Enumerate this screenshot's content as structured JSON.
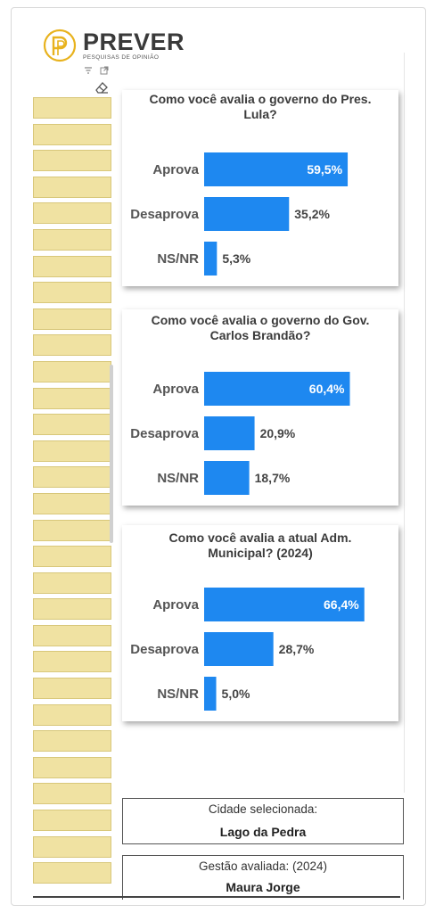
{
  "logo": {
    "name": "PREVER",
    "subtitle": "PESQUISAS DE OPINIÃO",
    "color": "#e8b21d"
  },
  "toolbar": {
    "filter_icon": "filter-icon",
    "expand_icon": "expand-icon",
    "eraser_icon": "eraser-icon"
  },
  "bar_color": "#1e88f0",
  "chart_data": [
    {
      "type": "bar",
      "orientation": "horizontal",
      "title": "Como você avalia o governo do Pres. Lula?",
      "categories": [
        "Aprova",
        "Desaprova",
        "NS/NR"
      ],
      "values": [
        59.5,
        35.2,
        5.3
      ],
      "labels": [
        "59,5%",
        "35,2%",
        "5,3%"
      ],
      "xlim": [
        0,
        100
      ]
    },
    {
      "type": "bar",
      "orientation": "horizontal",
      "title": "Como você avalia o governo do Gov. Carlos Brandão?",
      "categories": [
        "Aprova",
        "Desaprova",
        "NS/NR"
      ],
      "values": [
        60.4,
        20.9,
        18.7
      ],
      "labels": [
        "60,4%",
        "20,9%",
        "18,7%"
      ],
      "xlim": [
        0,
        100
      ]
    },
    {
      "type": "bar",
      "orientation": "horizontal",
      "title": "Como você avalia a atual Adm. Municipal? (2024)",
      "categories": [
        "Aprova",
        "Desaprova",
        "NS/NR"
      ],
      "values": [
        66.4,
        28.7,
        5.0
      ],
      "labels": [
        "66,4%",
        "28,7%",
        "5,0%"
      ],
      "xlim": [
        0,
        100
      ]
    }
  ],
  "city": {
    "label": "Cidade selecionada:",
    "value": "Lago da Pedra"
  },
  "management": {
    "label": "Gestão avaliada: (2024)",
    "value": "Maura Jorge"
  }
}
